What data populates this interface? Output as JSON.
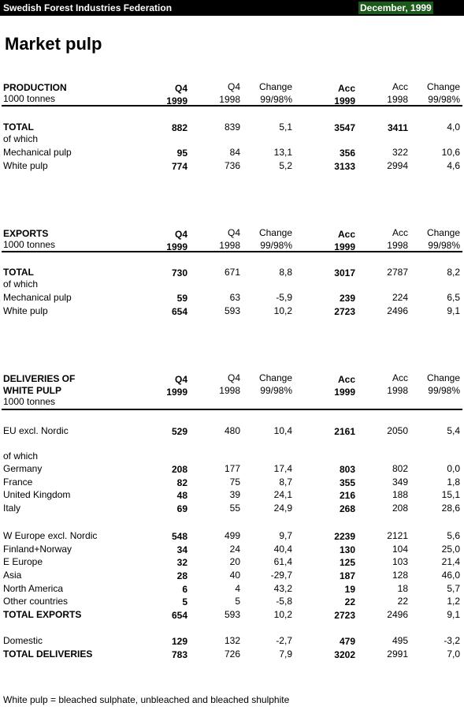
{
  "header": {
    "organization": "Swedish Forest Industries Federation",
    "date": "December, 1999"
  },
  "title": "Market pulp",
  "sections": [
    {
      "heading": [
        "PRODUCTION",
        "1000 tonnes"
      ],
      "columns": [
        [
          "Q4",
          "1999"
        ],
        [
          "Q4",
          "1998"
        ],
        [
          "Change",
          "99/98%"
        ],
        [
          "Acc",
          "1999"
        ],
        [
          "Acc",
          "1998"
        ],
        [
          "Change",
          "99/98%"
        ]
      ],
      "rows": [
        {
          "label": "TOTAL",
          "values": [
            "882",
            "839",
            "5,1",
            "3547",
            "3411",
            "4,0"
          ]
        },
        {
          "label": "of which"
        },
        {
          "label": "Mechanical pulp",
          "values": [
            "95",
            "84",
            "13,1",
            "356",
            "322",
            "10,6"
          ]
        },
        {
          "label": "White pulp",
          "values": [
            "774",
            "736",
            "5,2",
            "3133",
            "2994",
            "4,6"
          ]
        }
      ]
    },
    {
      "heading": [
        "EXPORTS",
        "1000 tonnes"
      ],
      "columns": [
        [
          "Q4",
          "1999"
        ],
        [
          "Q4",
          "1998"
        ],
        [
          "Change",
          "99/98%"
        ],
        [
          "Acc",
          "1999"
        ],
        [
          "Acc",
          "1998"
        ],
        [
          "Change",
          "99/98%"
        ]
      ],
      "rows": [
        {
          "label": "TOTAL",
          "values": [
            "730",
            "671",
            "8,8",
            "3017",
            "2787",
            "8,2"
          ]
        },
        {
          "label": "of which"
        },
        {
          "label": "Mechanical pulp",
          "values": [
            "59",
            "63",
            "-5,9",
            "239",
            "224",
            "6,5"
          ]
        },
        {
          "label": "White pulp",
          "values": [
            "654",
            "593",
            "10,2",
            "2723",
            "2496",
            "9,1"
          ]
        }
      ]
    },
    {
      "heading": [
        "DELIVERIES OF",
        "WHITE PULP",
        "1000 tonnes"
      ],
      "columns": [
        [
          "Q4",
          "1999"
        ],
        [
          "Q4",
          "1998"
        ],
        [
          "Change",
          "99/98%"
        ],
        [
          "Acc",
          "1999"
        ],
        [
          "Acc",
          "1998"
        ],
        [
          "Change",
          "99/98%"
        ]
      ],
      "rows": [
        {
          "label": "EU excl. Nordic",
          "values": [
            "529",
            "480",
            "10,4",
            "2161",
            "2050",
            "5,4"
          ]
        },
        {
          "label": "of which"
        },
        {
          "label": "Germany",
          "values": [
            "208",
            "177",
            "17,4",
            "803",
            "802",
            "0,0"
          ]
        },
        {
          "label": "France",
          "values": [
            "82",
            "75",
            "8,7",
            "355",
            "349",
            "1,8"
          ]
        },
        {
          "label": "United Kingdom",
          "values": [
            "48",
            "39",
            "24,1",
            "216",
            "188",
            "15,1"
          ]
        },
        {
          "label": "Italy",
          "values": [
            "69",
            "55",
            "24,9",
            "268",
            "208",
            "28,6"
          ]
        },
        {
          "label": "W Europe excl. Nordic",
          "values": [
            "548",
            "499",
            "9,7",
            "2239",
            "2121",
            "5,6"
          ]
        },
        {
          "label": "Finland+Norway",
          "values": [
            "34",
            "24",
            "40,4",
            "130",
            "104",
            "25,0"
          ]
        },
        {
          "label": "E Europe",
          "values": [
            "32",
            "20",
            "61,4",
            "125",
            "103",
            "21,4"
          ]
        },
        {
          "label": "Asia",
          "values": [
            "28",
            "40",
            "-29,7",
            "187",
            "128",
            "46,0"
          ]
        },
        {
          "label": "North America",
          "values": [
            "6",
            "4",
            "43,2",
            "19",
            "18",
            "5,7"
          ]
        },
        {
          "label": "Other countries",
          "values": [
            "5",
            "5",
            "-5,8",
            "22",
            "22",
            "1,2"
          ]
        },
        {
          "label": "TOTAL EXPORTS",
          "values": [
            "654",
            "593",
            "10,2",
            "2723",
            "2496",
            "9,1"
          ]
        },
        {
          "label": "Domestic",
          "values": [
            "129",
            "132",
            "-2,7",
            "479",
            "495",
            "-3,2"
          ]
        },
        {
          "label": "TOTAL DELIVERIES",
          "values": [
            "783",
            "726",
            "7,9",
            "3202",
            "2991",
            "7,0"
          ]
        }
      ]
    }
  ],
  "footnote": "White pulp = bleached sulphate, unbleached and bleached shulphite"
}
